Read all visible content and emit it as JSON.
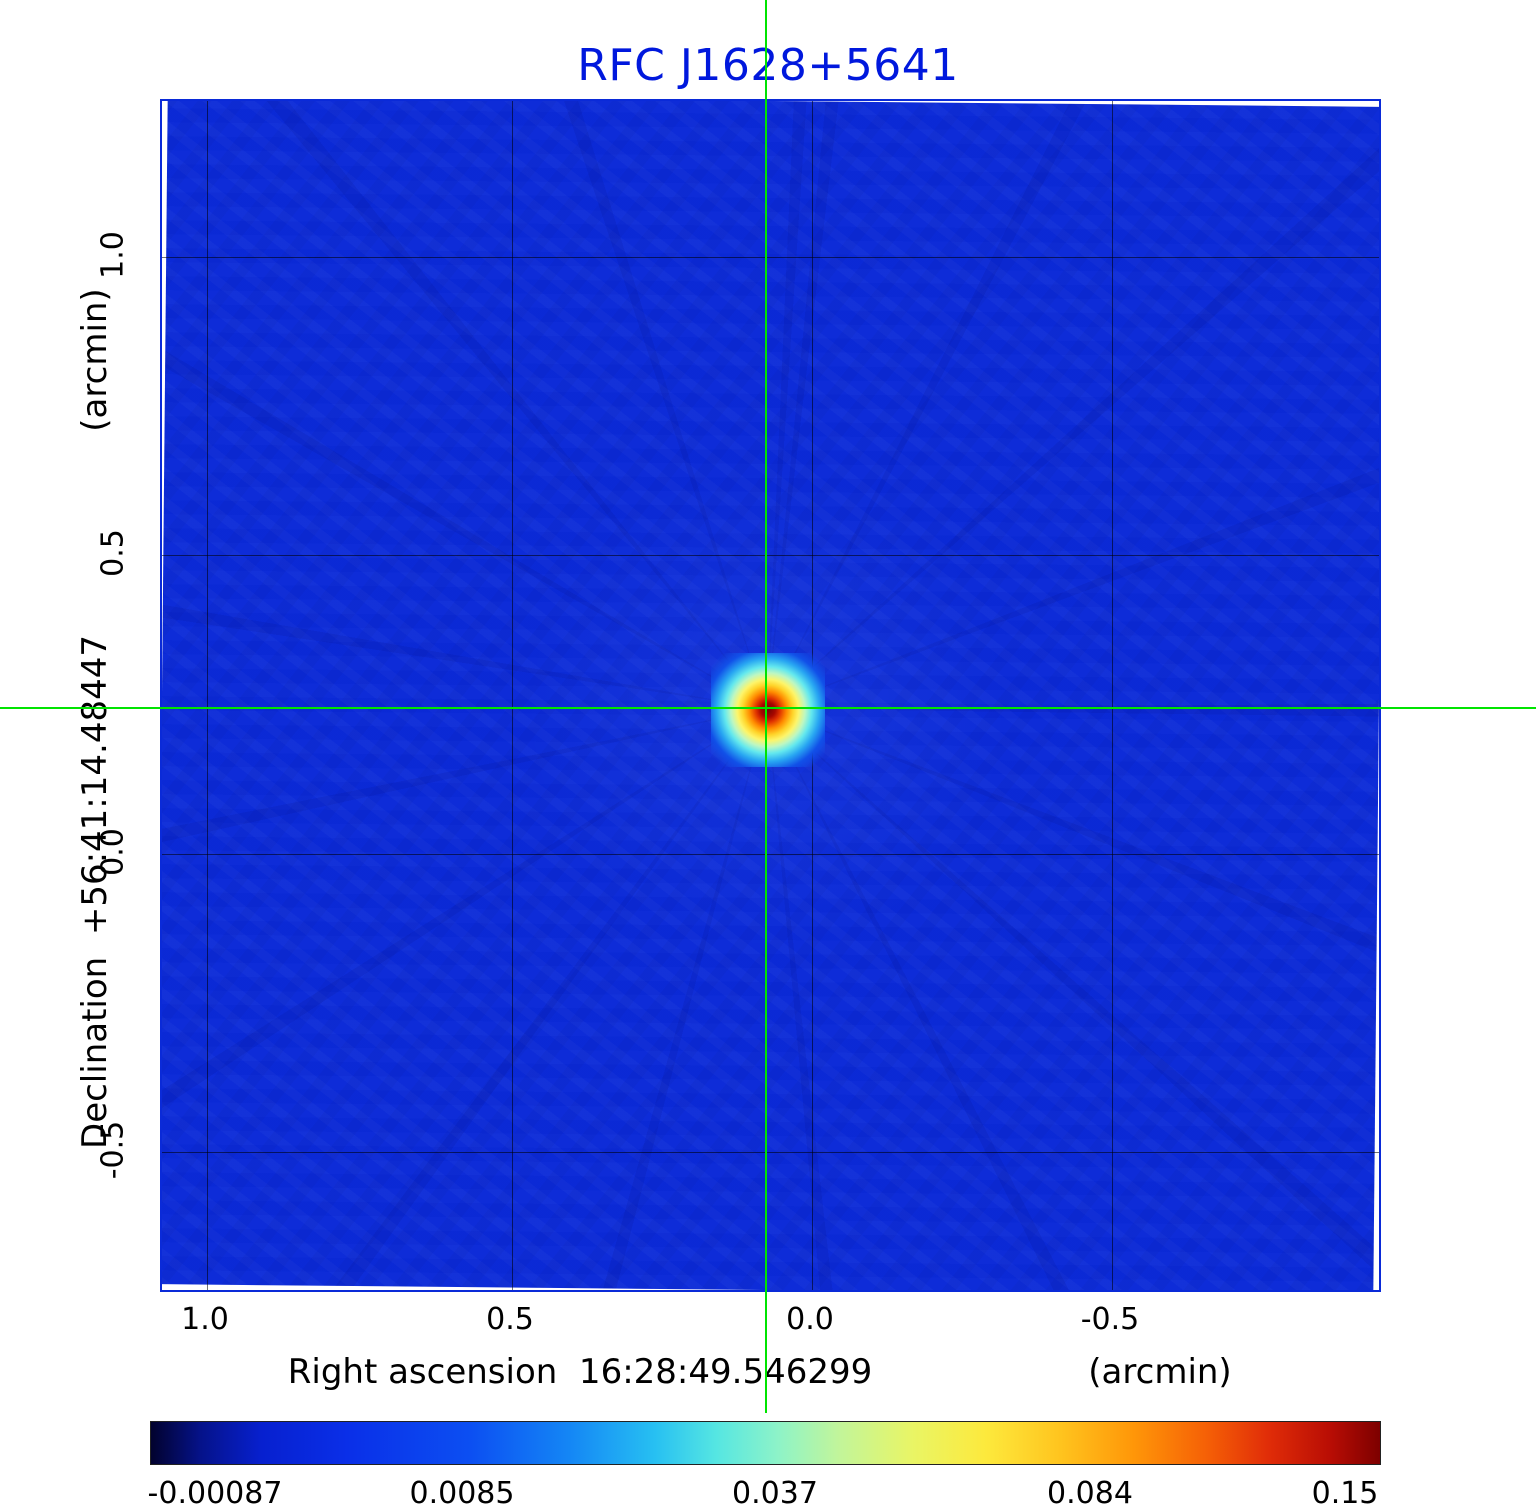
{
  "title": "RFC J1628+5641",
  "labels": {
    "x_main": "Right ascension  16:28:49.546299",
    "x_unit": "(arcmin)",
    "y_main": "Declination  +56:41:14.48447",
    "y_unit": "(arcmin)"
  },
  "colors": {
    "title": "#0018dd",
    "map_background": "#0b2ad8",
    "crosshair": "#00e400",
    "frame": "#0a2ad8"
  },
  "chart_data": {
    "type": "heatmap",
    "title": "RFC J1628+5641",
    "xlabel": "Right ascension 16:28:49.546299 (arcmin)",
    "ylabel": "Declination +56:41:14.48447 (arcmin)",
    "x_tick_labels": [
      "1.0",
      "0.5",
      "0.0",
      "-0.5"
    ],
    "y_tick_labels": [
      "1.0",
      "0.5",
      "0.0",
      "-0.5"
    ],
    "x_tick_values": [
      1.0,
      0.5,
      0.0,
      -0.5
    ],
    "y_tick_values": [
      1.0,
      0.5,
      0.0,
      -0.5
    ],
    "xlim": [
      1.08,
      -0.95
    ],
    "ylim": [
      -0.74,
      1.26
    ],
    "x_axis_inverted": true,
    "grid": true,
    "colormap": "jet",
    "colorbar_tick_labels": [
      "-0.00087",
      "0.0085",
      "0.037",
      "0.084",
      "0.15"
    ],
    "colorbar_tick_values": [
      -0.00087,
      0.0085,
      0.037,
      0.084,
      0.15
    ],
    "value_range": [
      -0.00087,
      0.15
    ],
    "background_value": 0.0,
    "peak": {
      "ra_offset_arcmin": 0.07,
      "dec_offset_arcmin": 0.24,
      "value": 0.15
    },
    "crosshair": {
      "ra_offset_arcmin": 0.07,
      "dec_offset_arcmin": 0.24
    },
    "description": "Compact point source at the green crosshair position on a flat blue noise background with faint radial sidelobe streaks"
  }
}
